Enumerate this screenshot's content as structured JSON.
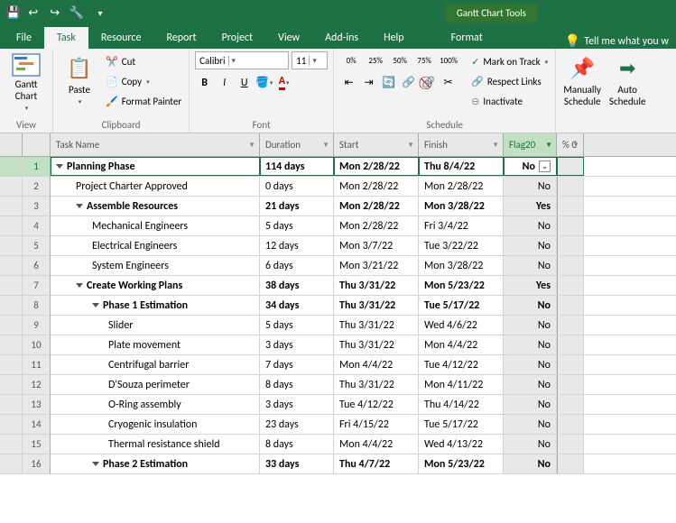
{
  "qat": {
    "save": "💾",
    "undo": "↩",
    "redo": "↪"
  },
  "context_title": "Gantt Chart Tools",
  "tabs": [
    "File",
    "Task",
    "Resource",
    "Report",
    "Project",
    "View",
    "Add-ins",
    "Help"
  ],
  "context_tab": "Format",
  "tell_me": "Tell me what you w",
  "ribbon": {
    "view": {
      "gantt": "Gantt Chart",
      "label": "View"
    },
    "clipboard": {
      "paste": "Paste",
      "cut": "Cut",
      "copy": "Copy",
      "fmt": "Format Painter",
      "label": "Clipboard"
    },
    "font": {
      "name": "Calibri",
      "size": "11",
      "label": "Font"
    },
    "schedule": {
      "mark": "Mark on Track",
      "respect": "Respect Links",
      "inact": "Inactivate",
      "label": "Schedule",
      "pcts": [
        "0%",
        "25%",
        "50%",
        "75%",
        "100%"
      ]
    },
    "tasks": {
      "manual": "Manually Schedule",
      "auto": "Auto Schedule"
    }
  },
  "columns": [
    {
      "key": "name",
      "label": "Task Name",
      "w": "c-name"
    },
    {
      "key": "dur",
      "label": "Duration",
      "w": "c-dur"
    },
    {
      "key": "start",
      "label": "Start",
      "w": "c-start"
    },
    {
      "key": "finish",
      "label": "Finish",
      "w": "c-finish"
    },
    {
      "key": "flag",
      "label": "Flag20",
      "w": "c-flag",
      "active": true
    },
    {
      "key": "pct",
      "label": "% C",
      "w": "c-pct"
    }
  ],
  "rows": [
    {
      "n": 1,
      "name": "Planning Phase",
      "dur": "114 days",
      "start": "Mon 2/28/22",
      "finish": "Thu 8/4/22",
      "flag": "No",
      "bold": true,
      "lvl": 0,
      "sum": true,
      "sel": true
    },
    {
      "n": 2,
      "name": "Project Charter Approved",
      "dur": "0 days",
      "start": "Mon 2/28/22",
      "finish": "Mon 2/28/22",
      "flag": "No",
      "lvl": 1
    },
    {
      "n": 3,
      "name": "Assemble Resources",
      "dur": "21 days",
      "start": "Mon 2/28/22",
      "finish": "Mon 3/28/22",
      "flag": "Yes",
      "bold": true,
      "lvl": 1,
      "sum": true
    },
    {
      "n": 4,
      "name": "Mechanical Engineers",
      "dur": "5 days",
      "start": "Mon 2/28/22",
      "finish": "Fri 3/4/22",
      "flag": "No",
      "lvl": 2
    },
    {
      "n": 5,
      "name": "Electrical Engineers",
      "dur": "12 days",
      "start": "Mon 3/7/22",
      "finish": "Tue 3/22/22",
      "flag": "No",
      "lvl": 2
    },
    {
      "n": 6,
      "name": "System Engineers",
      "dur": "6 days",
      "start": "Mon 3/21/22",
      "finish": "Mon 3/28/22",
      "flag": "No",
      "lvl": 2
    },
    {
      "n": 7,
      "name": "Create Working Plans",
      "dur": "38 days",
      "start": "Thu 3/31/22",
      "finish": "Mon 5/23/22",
      "flag": "Yes",
      "bold": true,
      "lvl": 1,
      "sum": true
    },
    {
      "n": 8,
      "name": "Phase 1 Estimation",
      "dur": "34 days",
      "start": "Thu 3/31/22",
      "finish": "Tue 5/17/22",
      "flag": "No",
      "bold": true,
      "lvl": 2,
      "sum": true
    },
    {
      "n": 9,
      "name": "Slider",
      "dur": "5 days",
      "start": "Thu 3/31/22",
      "finish": "Wed 4/6/22",
      "flag": "No",
      "lvl": 3
    },
    {
      "n": 10,
      "name": "Plate movement",
      "dur": "3 days",
      "start": "Thu 3/31/22",
      "finish": "Mon 4/4/22",
      "flag": "No",
      "lvl": 3
    },
    {
      "n": 11,
      "name": "Centrifugal barrier",
      "dur": "7 days",
      "start": "Mon 4/4/22",
      "finish": "Tue 4/12/22",
      "flag": "No",
      "lvl": 3
    },
    {
      "n": 12,
      "name": "D'Souza perimeter",
      "dur": "8 days",
      "start": "Thu 3/31/22",
      "finish": "Mon 4/11/22",
      "flag": "No",
      "lvl": 3
    },
    {
      "n": 13,
      "name": "O-Ring assembly",
      "dur": "3 days",
      "start": "Tue 4/12/22",
      "finish": "Thu 4/14/22",
      "flag": "No",
      "lvl": 3
    },
    {
      "n": 14,
      "name": "Cryogenic insulation",
      "dur": "23 days",
      "start": "Fri 4/15/22",
      "finish": "Tue 5/17/22",
      "flag": "No",
      "lvl": 3
    },
    {
      "n": 15,
      "name": "Thermal resistance shield",
      "dur": "8 days",
      "start": "Mon 4/4/22",
      "finish": "Wed 4/13/22",
      "flag": "No",
      "lvl": 3
    },
    {
      "n": 16,
      "name": "Phase 2 Estimation",
      "dur": "33 days",
      "start": "Thu 4/7/22",
      "finish": "Mon 5/23/22",
      "flag": "No",
      "bold": true,
      "lvl": 2,
      "sum": true
    }
  ]
}
